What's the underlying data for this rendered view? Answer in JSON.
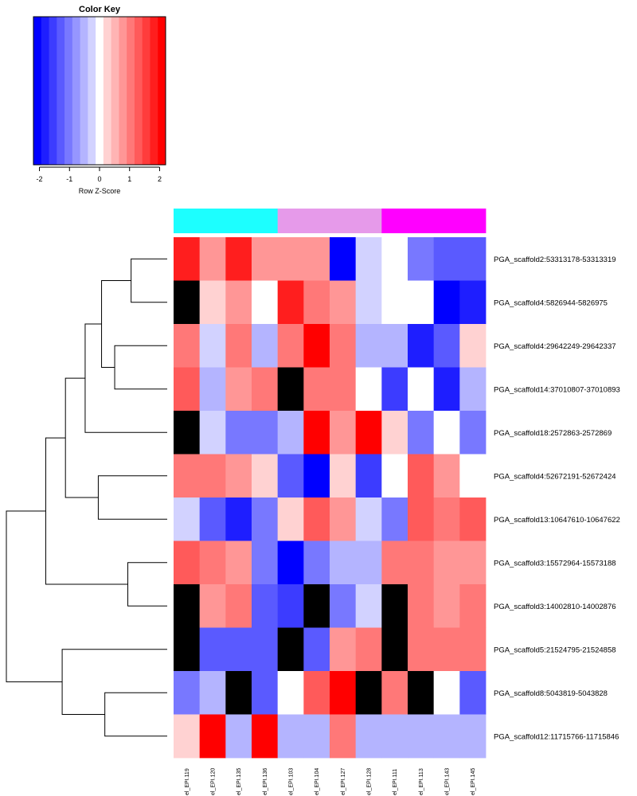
{
  "chart_data": {
    "type": "heatmap",
    "color_key": {
      "title": "Color Key",
      "xlabel": "Row Z-Score",
      "range": [
        -2.2,
        2.2
      ],
      "ticks": [
        "-2",
        "-1",
        "0",
        "1",
        "2"
      ],
      "tick_values": [
        -2,
        -1,
        0,
        1,
        2
      ],
      "colors": [
        "#0000ff",
        "#1e1eff",
        "#3c3cff",
        "#5a5aff",
        "#7878ff",
        "#9696ff",
        "#b4b4ff",
        "#d2d2ff",
        "#ffffff",
        "#ffd2d2",
        "#ffb4b4",
        "#ff9696",
        "#ff7878",
        "#ff5a5a",
        "#ff3c3c",
        "#ff1e1e",
        "#ff0000"
      ]
    },
    "na_color": "#000000",
    "column_groups": [
      {
        "color": "#1cffff",
        "columns": 4
      },
      {
        "color": "#e69aea",
        "columns": 4
      },
      {
        "color": "#ff00ff",
        "columns": 4
      }
    ],
    "columns": [
      "el_EPI.119",
      "el_EPI.120",
      "el_EPI.135",
      "el_EPI.136",
      "el_EPI.103",
      "el_EPI.104",
      "el_EPI.127",
      "el_EPI.128",
      "el_EPI.111",
      "el_EPI.113",
      "el_EPI.143",
      "el_EPI.145"
    ],
    "rows": [
      "PGA_scaffold2:53313178-53313319",
      "PGA_scaffold4:5826944-5826975",
      "PGA_scaffold4:29642249-29642337",
      "PGA_scaffold14:37010807-37010893",
      "PGA_scaffold18:2572863-2572869",
      "PGA_scaffold4:52672191-52672424",
      "PGA_scaffold13:10647610-10647622",
      "PGA_scaffold3:15572964-15573188",
      "PGA_scaffold3:14002810-14002876",
      "PGA_scaffold5:21524795-21524858",
      "PGA_scaffold8:5043819-5043828",
      "PGA_scaffold12:11715766-11715846"
    ],
    "values": [
      [
        1.7,
        0.8,
        1.7,
        0.8,
        0.8,
        0.8,
        -2.0,
        -0.2,
        0.0,
        -1.0,
        -1.3,
        -1.3
      ],
      [
        null,
        0.2,
        0.8,
        0.0,
        1.7,
        1.0,
        0.8,
        -0.2,
        0.0,
        0.0,
        -2.0,
        -1.8
      ],
      [
        1.0,
        -0.2,
        1.0,
        -0.6,
        1.0,
        2.1,
        1.0,
        -0.6,
        -0.6,
        -1.8,
        -1.3,
        0.2
      ],
      [
        1.3,
        -0.6,
        0.8,
        1.0,
        null,
        1.0,
        1.0,
        0.0,
        -1.6,
        0.0,
        -1.8,
        -0.6
      ],
      [
        null,
        -0.2,
        -1.0,
        -1.0,
        -0.6,
        2.2,
        0.8,
        2.0,
        0.2,
        -1.0,
        0.0,
        -1.0
      ],
      [
        1.0,
        1.0,
        0.8,
        0.2,
        -1.3,
        -2.2,
        0.2,
        -1.6,
        0.0,
        1.3,
        0.8,
        0.0
      ],
      [
        -0.2,
        -1.3,
        -1.8,
        -1.0,
        0.2,
        1.3,
        0.8,
        -0.2,
        -1.0,
        1.3,
        1.0,
        1.3
      ],
      [
        1.3,
        1.0,
        0.8,
        -1.0,
        -2.2,
        -1.0,
        -0.6,
        -0.6,
        1.0,
        1.0,
        0.8,
        0.8
      ],
      [
        null,
        0.8,
        1.0,
        -1.3,
        -1.6,
        null,
        -1.0,
        -0.2,
        null,
        1.0,
        0.8,
        1.0
      ],
      [
        null,
        -1.3,
        -1.3,
        -1.3,
        null,
        -1.3,
        0.8,
        1.0,
        null,
        1.0,
        1.0,
        1.0
      ],
      [
        -1.0,
        -0.6,
        null,
        -1.3,
        0.0,
        1.3,
        2.0,
        null,
        1.0,
        null,
        0.0,
        -1.3
      ],
      [
        0.2,
        2.2,
        -0.6,
        2.0,
        -0.6,
        -0.6,
        1.0,
        -0.6,
        -0.6,
        -0.6,
        -0.6,
        -0.6
      ]
    ],
    "dendrogram": {
      "order": [
        0,
        1,
        2,
        3,
        4,
        5,
        6,
        7,
        8,
        9,
        10,
        11
      ],
      "merges": [
        [
          -1,
          -2,
          0.11
        ],
        [
          -3,
          -4,
          0.16
        ],
        [
          1,
          2,
          0.2
        ],
        [
          -5,
          3,
          0.25
        ],
        [
          -6,
          -7,
          0.21
        ],
        [
          4,
          5,
          0.31
        ],
        [
          -8,
          -9,
          0.12
        ],
        [
          6,
          7,
          0.37
        ],
        [
          -11,
          -12,
          0.19
        ],
        [
          -10,
          9,
          0.32
        ],
        [
          8,
          10,
          0.49
        ]
      ]
    }
  }
}
